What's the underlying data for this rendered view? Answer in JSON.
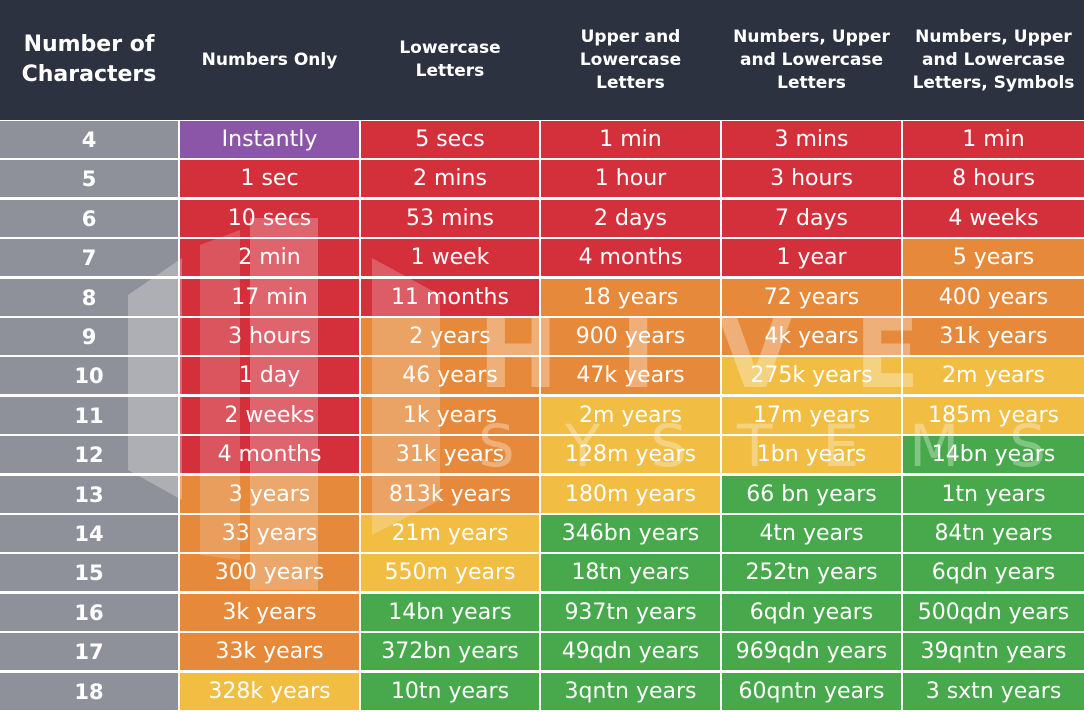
{
  "watermark": {
    "line1": "HIVE",
    "line2": "SYSTEMS"
  },
  "colors": {
    "header_bg": "#2d3240",
    "row_label_bg": "#8e9199",
    "instantly": "#8b56a8",
    "red": "#d3303c",
    "orange": "#e6893a",
    "yellow": "#f1bd43",
    "green": "#47a94b",
    "text": "#ffffff"
  },
  "chart_data": {
    "type": "table",
    "columns": [
      "Number of\nCharacters",
      "Numbers Only",
      "Lowercase\nLetters",
      "Upper and\nLowercase\nLetters",
      "Numbers, Upper\nand Lowercase\nLetters",
      "Numbers, Upper\nand Lowercase\nLetters, Symbols"
    ],
    "rows": [
      {
        "chars": "4",
        "cells": [
          "Instantly",
          "5 secs",
          "1 min",
          "3 mins",
          "1 min"
        ],
        "levels": [
          "instantly",
          "red",
          "red",
          "red",
          "red"
        ]
      },
      {
        "chars": "5",
        "cells": [
          "1 sec",
          "2 mins",
          "1 hour",
          "3 hours",
          "8 hours"
        ],
        "levels": [
          "red",
          "red",
          "red",
          "red",
          "red"
        ]
      },
      {
        "chars": "6",
        "cells": [
          "10 secs",
          "53 mins",
          "2 days",
          "7 days",
          "4 weeks"
        ],
        "levels": [
          "red",
          "red",
          "red",
          "red",
          "red"
        ]
      },
      {
        "chars": "7",
        "cells": [
          "2 min",
          "1 week",
          "4 months",
          "1 year",
          "5 years"
        ],
        "levels": [
          "red",
          "red",
          "red",
          "red",
          "orange"
        ]
      },
      {
        "chars": "8",
        "cells": [
          "17 min",
          "11 months",
          "18 years",
          "72 years",
          "400 years"
        ],
        "levels": [
          "red",
          "red",
          "orange",
          "orange",
          "orange"
        ]
      },
      {
        "chars": "9",
        "cells": [
          "3 hours",
          "2 years",
          "900 years",
          "4k years",
          "31k years"
        ],
        "levels": [
          "red",
          "orange",
          "orange",
          "orange",
          "orange"
        ]
      },
      {
        "chars": "10",
        "cells": [
          "1 day",
          "46 years",
          "47k years",
          "275k years",
          "2m years"
        ],
        "levels": [
          "red",
          "orange",
          "orange",
          "yellow",
          "yellow"
        ]
      },
      {
        "chars": "11",
        "cells": [
          "2 weeks",
          "1k years",
          "2m years",
          "17m years",
          "185m years"
        ],
        "levels": [
          "red",
          "orange",
          "yellow",
          "yellow",
          "yellow"
        ]
      },
      {
        "chars": "12",
        "cells": [
          "4 months",
          "31k years",
          "128m years",
          "1bn years",
          "14bn years"
        ],
        "levels": [
          "red",
          "orange",
          "yellow",
          "yellow",
          "green"
        ]
      },
      {
        "chars": "13",
        "cells": [
          "3 years",
          "813k years",
          "180m years",
          "66 bn years",
          "1tn years"
        ],
        "levels": [
          "orange",
          "orange",
          "yellow",
          "green",
          "green"
        ]
      },
      {
        "chars": "14",
        "cells": [
          "33 years",
          "21m years",
          "346bn years",
          "4tn years",
          "84tn years"
        ],
        "levels": [
          "orange",
          "yellow",
          "green",
          "green",
          "green"
        ]
      },
      {
        "chars": "15",
        "cells": [
          "300 years",
          "550m years",
          "18tn years",
          "252tn years",
          "6qdn years"
        ],
        "levels": [
          "orange",
          "yellow",
          "green",
          "green",
          "green"
        ]
      },
      {
        "chars": "16",
        "cells": [
          "3k years",
          "14bn years",
          "937tn years",
          "6qdn years",
          "500qdn years"
        ],
        "levels": [
          "orange",
          "green",
          "green",
          "green",
          "green"
        ]
      },
      {
        "chars": "17",
        "cells": [
          "33k years",
          "372bn years",
          "49qdn years",
          "969qdn years",
          "39qntn years"
        ],
        "levels": [
          "orange",
          "green",
          "green",
          "green",
          "green"
        ]
      },
      {
        "chars": "18",
        "cells": [
          "328k years",
          "10tn years",
          "3qntn years",
          "60qntn years",
          "3 sxtn years"
        ],
        "levels": [
          "yellow",
          "green",
          "green",
          "green",
          "green"
        ]
      }
    ]
  }
}
